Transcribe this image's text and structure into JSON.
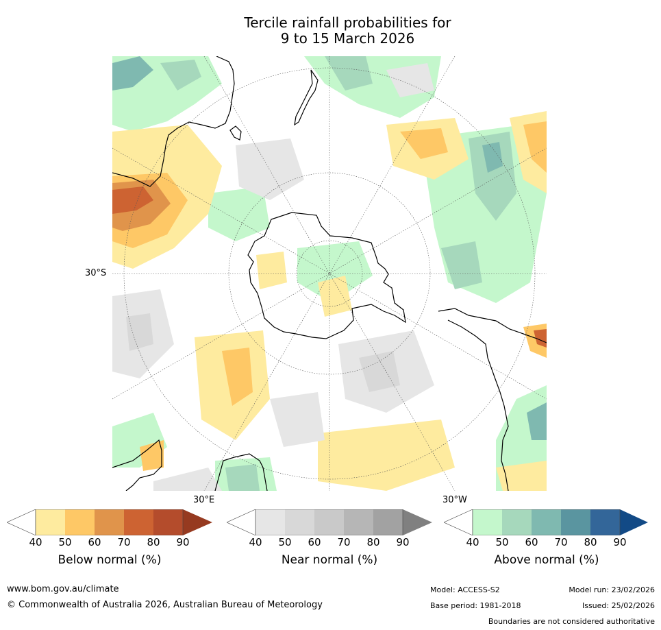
{
  "title": {
    "line1": "Tercile rainfall probabilities for",
    "line2": "9 to 15 March 2026"
  },
  "map": {
    "projection": "south-polar-stereographic",
    "lat_label": "30°S",
    "lon_labels": {
      "east": "30°E",
      "west": "30°W"
    }
  },
  "legends": [
    {
      "label": "Below normal (%)",
      "ticks": [
        "40",
        "50",
        "60",
        "70",
        "80",
        "90"
      ],
      "colors": [
        "#ffffff",
        "#feeb9f",
        "#fec866",
        "#e0944b",
        "#cd6332",
        "#b44c2c",
        "#963a20"
      ]
    },
    {
      "label": "Near normal (%)",
      "ticks": [
        "40",
        "50",
        "60",
        "70",
        "80",
        "90"
      ],
      "colors": [
        "#ffffff",
        "#e6e6e6",
        "#d8d8d8",
        "#c9c9c9",
        "#b6b6b6",
        "#a2a2a2",
        "#808080"
      ]
    },
    {
      "label": "Above normal (%)",
      "ticks": [
        "40",
        "50",
        "60",
        "70",
        "80",
        "90"
      ],
      "colors": [
        "#ffffff",
        "#c4f7cc",
        "#a6d8bc",
        "#7fb9b0",
        "#5a95a0",
        "#336699",
        "#124a86"
      ]
    }
  ],
  "footer": {
    "website": "www.bom.gov.au/climate",
    "copyright": "© Commonwealth of Australia 2026, Australian Bureau of Meteorology",
    "model": "Model: ACCESS-S2",
    "model_run": "Model run: 23/02/2026",
    "base_period": "Base period: 1981-2018",
    "issued": "Issued: 25/02/2026",
    "disclaimer": "Boundaries are not considered authoritative"
  }
}
